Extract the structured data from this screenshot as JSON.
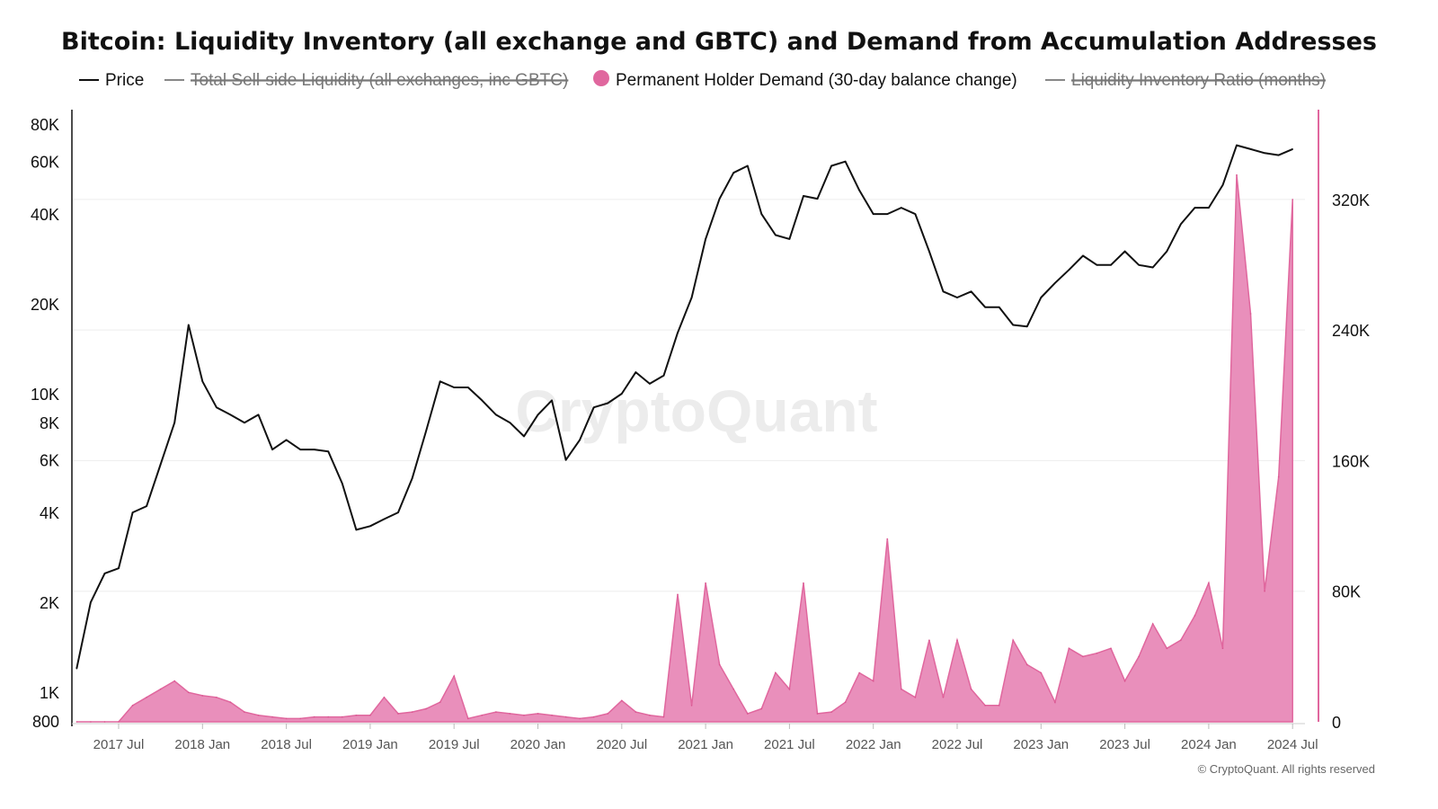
{
  "chart_data": {
    "type": "line+area",
    "title": "Bitcoin: Liquidity Inventory (all exchange and GBTC) and Demand from Accumulation Addresses",
    "legend": [
      {
        "name": "Price",
        "color": "#111111",
        "enabled": true
      },
      {
        "name": "Total Sell-side Liquidity (all exchanges, inc GBTC)",
        "color": "#888888",
        "enabled": false
      },
      {
        "name": "Permanent Holder Demand (30-day balance change)",
        "color": "#e0679e",
        "enabled": true
      },
      {
        "name": "Liquidity Inventory Ratio (months)",
        "color": "#888888",
        "enabled": false
      }
    ],
    "legend_placement": "top",
    "x_start": "2017-04",
    "x_frequency": "monthly",
    "x_tick_labels": [
      "2017 Jul",
      "2018 Jan",
      "2018 Jul",
      "2019 Jan",
      "2019 Jul",
      "2020 Jan",
      "2020 Jul",
      "2021 Jan",
      "2021 Jul",
      "2022 Jan",
      "2022 Jul",
      "2023 Jan",
      "2023 Jul",
      "2024 Jan",
      "2024 Jul"
    ],
    "left_axis": {
      "scale": "log",
      "range": [
        800,
        80000
      ],
      "tick_labels": [
        "80K",
        "60K",
        "40K",
        "20K",
        "10K",
        "8K",
        "6K",
        "4K",
        "2K",
        "1K",
        "800"
      ],
      "tick_values": [
        80000,
        60000,
        40000,
        20000,
        10000,
        8000,
        6000,
        4000,
        2000,
        1000,
        800
      ]
    },
    "right_axis": {
      "scale": "linear",
      "range": [
        0,
        375000
      ],
      "tick_labels": [
        "320K",
        "240K",
        "160K",
        "80K",
        "0"
      ],
      "tick_values": [
        320000,
        240000,
        160000,
        80000,
        0
      ]
    },
    "series": [
      {
        "name": "Price",
        "axis": "left",
        "type": "line",
        "color": "#111111",
        "values": [
          1200,
          2000,
          2500,
          2600,
          4000,
          4200,
          5800,
          8000,
          17000,
          11000,
          9000,
          8500,
          8000,
          8500,
          6500,
          7000,
          6500,
          6500,
          6400,
          5000,
          3500,
          3600,
          3800,
          4000,
          5200,
          7500,
          11000,
          10500,
          10500,
          9500,
          8500,
          8000,
          7200,
          8500,
          9500,
          6000,
          7000,
          9000,
          9300,
          10000,
          11800,
          10800,
          11500,
          16000,
          21000,
          33000,
          45000,
          55000,
          58000,
          40000,
          34000,
          33000,
          46000,
          45000,
          58000,
          60000,
          48000,
          40000,
          40000,
          42000,
          40000,
          30000,
          22000,
          21000,
          22000,
          19500,
          19500,
          17000,
          16800,
          21000,
          23500,
          26000,
          29000,
          27000,
          27000,
          30000,
          27000,
          26500,
          30000,
          37000,
          42000,
          42000,
          50000,
          68000,
          66000,
          64000,
          63000,
          66000
        ]
      },
      {
        "name": "Permanent Holder Demand (30-day balance change)",
        "axis": "right",
        "type": "area",
        "color": "#e0679e",
        "values": [
          0,
          0,
          0,
          0,
          10000,
          15000,
          20000,
          25000,
          18000,
          16000,
          15000,
          12000,
          6000,
          4000,
          3000,
          2000,
          2000,
          3000,
          3000,
          3000,
          4000,
          4000,
          15000,
          5000,
          6000,
          8000,
          12000,
          28000,
          2000,
          4000,
          6000,
          5000,
          4000,
          5000,
          4000,
          3000,
          2000,
          3000,
          5000,
          13000,
          6000,
          4000,
          3000,
          78000,
          10000,
          85000,
          35000,
          20000,
          5000,
          8000,
          30000,
          20000,
          85000,
          5000,
          6000,
          12000,
          30000,
          25000,
          112000,
          20000,
          15000,
          50000,
          15000,
          50000,
          20000,
          10000,
          10000,
          50000,
          35000,
          30000,
          12000,
          45000,
          40000,
          42000,
          45000,
          25000,
          40000,
          60000,
          45000,
          50000,
          65000,
          85000,
          45000,
          335000,
          250000,
          80000,
          150000,
          320000
        ]
      }
    ],
    "grid": "horizontal-faint",
    "watermark": "CryptoQuant",
    "footer": "© CryptoQuant. All rights reserved"
  }
}
